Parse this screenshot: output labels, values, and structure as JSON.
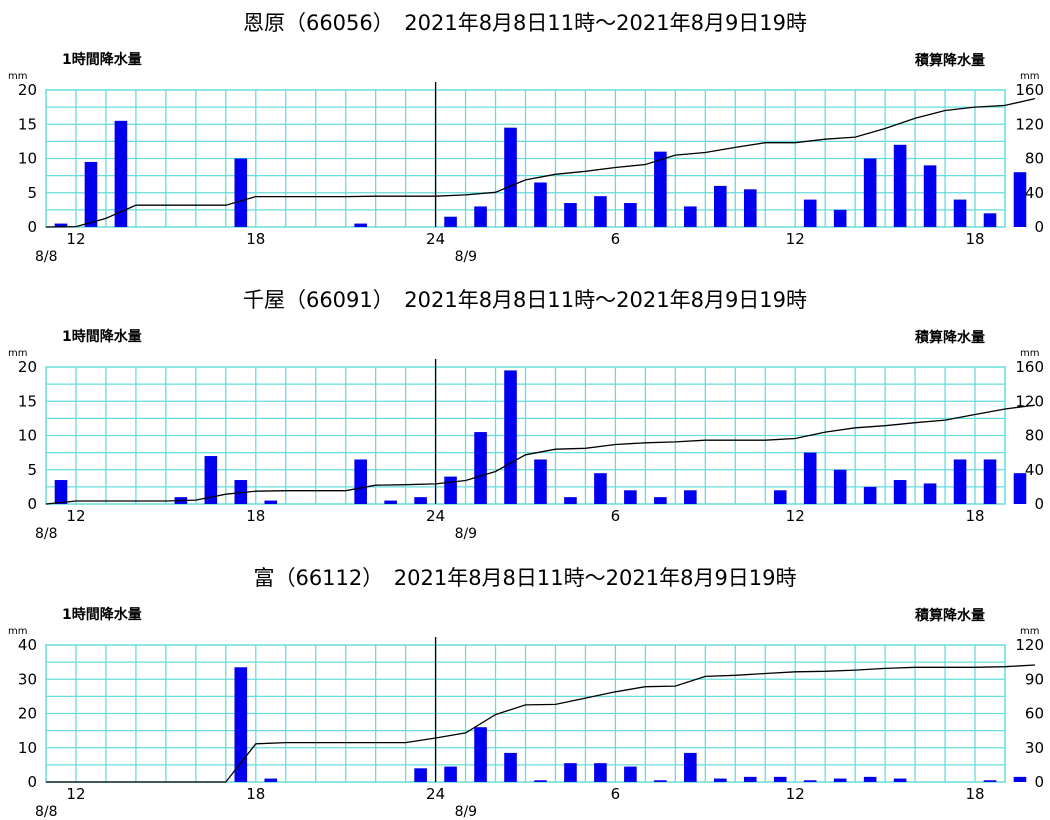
{
  "charts": [
    {
      "title": "恩原（66056）　2021年8月8日11時～2021年8月9日19時",
      "left_label": "1時間降水量",
      "right_label": "積算降水量",
      "left_unit": "mm",
      "right_unit": "mm",
      "left_ticks": [
        "0",
        "5",
        "10",
        "15",
        "20"
      ],
      "right_ticks": [
        "0",
        "40",
        "80",
        "120",
        "160"
      ],
      "x_labels": [
        {
          "hour": 12,
          "text": "12"
        },
        {
          "hour": 18,
          "text": "18"
        },
        {
          "hour": 24,
          "text": "24"
        },
        {
          "hour": 30,
          "text": "6"
        },
        {
          "hour": 36,
          "text": "12"
        },
        {
          "hour": 42,
          "text": "18"
        }
      ],
      "date_labels": [
        {
          "hour": 11,
          "text": "8/8"
        },
        {
          "hour": 25,
          "text": "8/9"
        }
      ]
    },
    {
      "title": "千屋（66091）　2021年8月8日11時～2021年8月9日19時",
      "left_label": "1時間降水量",
      "right_label": "積算降水量",
      "left_unit": "mm",
      "right_unit": "mm",
      "left_ticks": [
        "0",
        "5",
        "10",
        "15",
        "20"
      ],
      "right_ticks": [
        "0",
        "40",
        "80",
        "120",
        "160"
      ],
      "x_labels": [
        {
          "hour": 12,
          "text": "12"
        },
        {
          "hour": 18,
          "text": "18"
        },
        {
          "hour": 24,
          "text": "24"
        },
        {
          "hour": 30,
          "text": "6"
        },
        {
          "hour": 36,
          "text": "12"
        },
        {
          "hour": 42,
          "text": "18"
        }
      ],
      "date_labels": [
        {
          "hour": 11,
          "text": "8/8"
        },
        {
          "hour": 25,
          "text": "8/9"
        }
      ]
    },
    {
      "title": "富（66112）　2021年8月8日11時～2021年8月9日19時",
      "left_label": "1時間降水量",
      "right_label": "積算降水量",
      "left_unit": "mm",
      "right_unit": "mm",
      "left_ticks": [
        "0",
        "10",
        "20",
        "30",
        "40"
      ],
      "right_ticks": [
        "0",
        "30",
        "60",
        "90",
        "120"
      ],
      "x_labels": [
        {
          "hour": 12,
          "text": "12"
        },
        {
          "hour": 18,
          "text": "18"
        },
        {
          "hour": 24,
          "text": "24"
        },
        {
          "hour": 30,
          "text": "6"
        },
        {
          "hour": 36,
          "text": "12"
        },
        {
          "hour": 42,
          "text": "18"
        }
      ],
      "date_labels": [
        {
          "hour": 11,
          "text": "8/8"
        },
        {
          "hour": 25,
          "text": "8/9"
        }
      ]
    }
  ],
  "colors": {
    "bar": "#0000ee",
    "grid": "#66dddd",
    "line": "#000000",
    "separator": "#000000"
  },
  "chart_data": [
    {
      "type": "bar",
      "station": "恩原（66056）",
      "x_hours": [
        12,
        13,
        14,
        15,
        16,
        17,
        18,
        19,
        20,
        21,
        22,
        23,
        24,
        25,
        26,
        27,
        28,
        29,
        30,
        31,
        32,
        33,
        34,
        35,
        36,
        37,
        38,
        39,
        40,
        41,
        42,
        43
      ],
      "hourly_mm": [
        0.5,
        9.5,
        15.5,
        0,
        0,
        0,
        10,
        0,
        0,
        0,
        0.5,
        0,
        0,
        1.5,
        3,
        14.5,
        6.5,
        3.5,
        4.5,
        3.5,
        11,
        3,
        6,
        5.5,
        0,
        4,
        2.5,
        10,
        12,
        9,
        4,
        2
      ],
      "hourly_mm_last": 8,
      "cumulative_mm": [
        0.5,
        10,
        25.5,
        25.5,
        25.5,
        25.5,
        35.5,
        35.5,
        35.5,
        35.5,
        36,
        36,
        36,
        37.5,
        40.5,
        55,
        61.5,
        65,
        69.5,
        73,
        84,
        87,
        93,
        98.5,
        98.5,
        102.5,
        105,
        115,
        127,
        136,
        140,
        142,
        150
      ],
      "ylim_left": [
        0,
        20
      ],
      "ylim_right": [
        0,
        160
      ],
      "xlabel": "",
      "ylabel": "1時間降水量",
      "y2label": "積算降水量"
    },
    {
      "type": "bar",
      "station": "千屋（66091）",
      "x_hours": [
        12,
        13,
        14,
        15,
        16,
        17,
        18,
        19,
        20,
        21,
        22,
        23,
        24,
        25,
        26,
        27,
        28,
        29,
        30,
        31,
        32,
        33,
        34,
        35,
        36,
        37,
        38,
        39,
        40,
        41,
        42,
        43
      ],
      "hourly_mm": [
        3.5,
        0,
        0,
        0,
        1,
        7,
        3.5,
        0.5,
        0,
        0,
        6.5,
        0.5,
        1,
        4,
        10.5,
        19.5,
        6.5,
        1,
        4.5,
        2,
        1,
        2,
        0,
        0,
        2,
        7.5,
        5,
        2.5,
        3.5,
        3,
        6.5,
        6.5
      ],
      "hourly_mm_last": 4.5,
      "cumulative_mm": [
        3.5,
        3.5,
        3.5,
        3.5,
        4.5,
        11.5,
        15,
        15.5,
        15.5,
        15.5,
        22,
        22.5,
        23.5,
        27.5,
        38,
        57.5,
        64,
        65,
        69.5,
        71.5,
        72.5,
        74.5,
        74.5,
        74.5,
        76.5,
        84,
        89,
        91.5,
        95,
        98,
        104.5,
        111,
        115.5
      ],
      "ylim_left": [
        0,
        20
      ],
      "ylim_right": [
        0,
        160
      ],
      "xlabel": "",
      "ylabel": "1時間降水量",
      "y2label": "積算降水量"
    },
    {
      "type": "bar",
      "station": "富（66112）",
      "x_hours": [
        12,
        13,
        14,
        15,
        16,
        17,
        18,
        19,
        20,
        21,
        22,
        23,
        24,
        25,
        26,
        27,
        28,
        29,
        30,
        31,
        32,
        33,
        34,
        35,
        36,
        37,
        38,
        39,
        40,
        41,
        42,
        43
      ],
      "hourly_mm": [
        0,
        0,
        0,
        0,
        0,
        0,
        33.5,
        1,
        0,
        0,
        0,
        0,
        4,
        4.5,
        16,
        8.5,
        0.5,
        5.5,
        5.5,
        4.5,
        0.5,
        8.5,
        1,
        1.5,
        1.5,
        0.5,
        1,
        1.5,
        1,
        0,
        0,
        0.5
      ],
      "hourly_mm_last": 1.5,
      "cumulative_mm": [
        0,
        0,
        0,
        0,
        0,
        0,
        33.5,
        34.5,
        34.5,
        34.5,
        34.5,
        34.5,
        38.5,
        43,
        59,
        67.5,
        68,
        73.5,
        79,
        83.5,
        84,
        92.5,
        93.5,
        95,
        96.5,
        97,
        98,
        99.5,
        100.5,
        100.5,
        100.5,
        101,
        102.5
      ],
      "ylim_left": [
        0,
        40
      ],
      "ylim_right": [
        0,
        120
      ],
      "xlabel": "",
      "ylabel": "1時間降水量",
      "y2label": "積算降水量"
    }
  ]
}
